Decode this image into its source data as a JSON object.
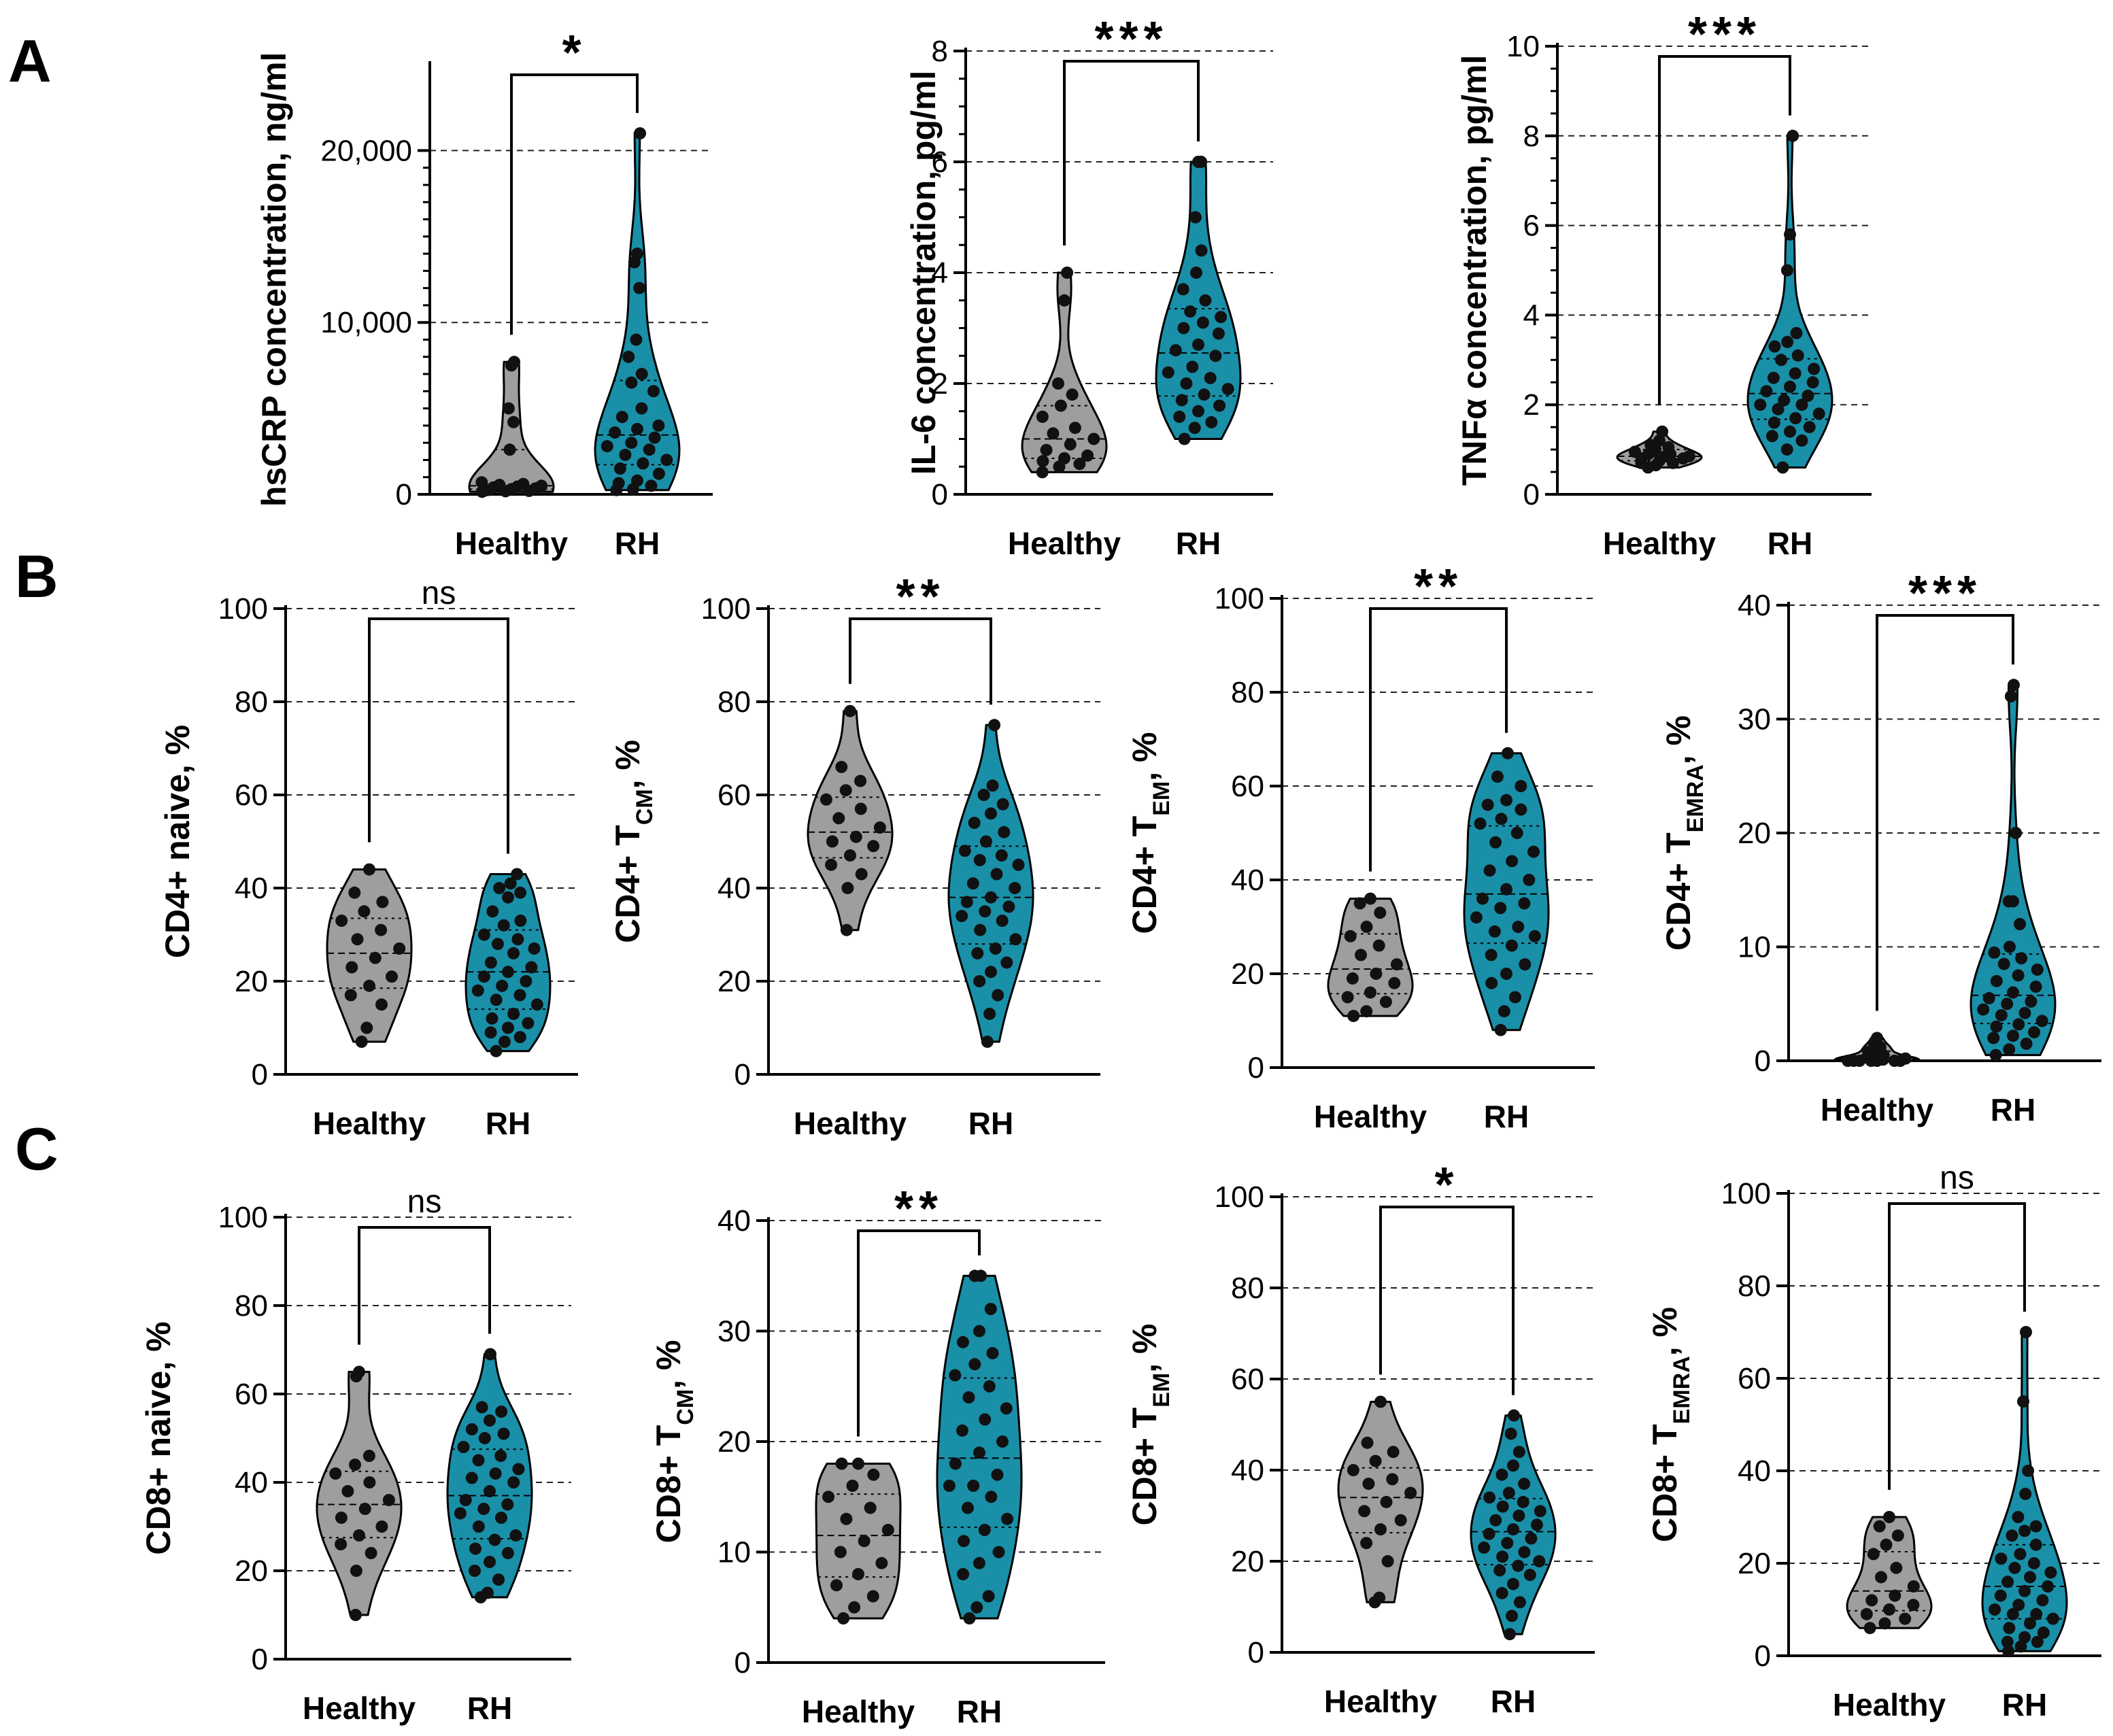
{
  "panel_labels": [
    "A",
    "B",
    "C"
  ],
  "colors": {
    "healthy": "#9e9e9e",
    "rh": "#1a8fa8",
    "dot": "#111111"
  },
  "chart_data": [
    {
      "id": "hscrp",
      "type": "violin",
      "ylabel": "hsCRP concentration, ng/ml",
      "ylim": [
        0,
        25000
      ],
      "yticks": [
        0,
        10000,
        20000
      ],
      "ytick_labels": [
        "0",
        "10,000",
        "20,000"
      ],
      "grid": "dashed",
      "categories": [
        "Healthy",
        "RH"
      ],
      "significance": "*",
      "series": [
        {
          "values": [
            300,
            150,
            450,
            700,
            250,
            500,
            180,
            350,
            4200,
            5000,
            7700,
            7500,
            2600,
            600,
            400,
            200,
            550
          ]
        },
        {
          "values": [
            300,
            500,
            800,
            1200,
            1800,
            2300,
            2600,
            3000,
            3300,
            3600,
            4000,
            4500,
            5000,
            6000,
            7000,
            8000,
            9000,
            12000,
            13500,
            14000,
            21000,
            250,
            650,
            1500,
            2000,
            2800,
            3800,
            6500
          ]
        }
      ]
    },
    {
      "id": "il6",
      "type": "violin",
      "ylabel": "IL-6 concentration, pg/ml",
      "ylim": [
        0,
        8
      ],
      "yticks": [
        0,
        2,
        4,
        6,
        8
      ],
      "ytick_labels": [
        "0",
        "2",
        "4",
        "6",
        "8"
      ],
      "grid": "dashed",
      "categories": [
        "Healthy",
        "RH"
      ],
      "significance": "***",
      "series": [
        {
          "values": [
            0.4,
            0.5,
            0.6,
            0.7,
            0.8,
            0.9,
            1.0,
            1.2,
            1.4,
            1.6,
            1.8,
            2.0,
            3.5,
            4.0,
            0.55,
            0.65,
            1.1
          ]
        },
        {
          "values": [
            1.0,
            1.2,
            1.4,
            1.5,
            1.6,
            1.8,
            2.0,
            2.1,
            2.3,
            2.5,
            2.7,
            3.0,
            3.1,
            3.3,
            3.5,
            3.7,
            4.0,
            4.4,
            5.0,
            6.0,
            6.0,
            1.3,
            1.7,
            2.2,
            2.9,
            3.2,
            1.9,
            2.6
          ]
        }
      ]
    },
    {
      "id": "tnfa",
      "type": "violin",
      "ylabel": "TNFα concentration, pg/ml",
      "ylim": [
        0,
        10
      ],
      "yticks": [
        0,
        2,
        4,
        6,
        8,
        10
      ],
      "ytick_labels": [
        "0",
        "2",
        "4",
        "6",
        "8",
        "10"
      ],
      "grid": "dashed",
      "categories": [
        "Healthy",
        "RH"
      ],
      "significance": "***",
      "series": [
        {
          "values": [
            0.6,
            0.7,
            0.75,
            0.8,
            0.85,
            0.9,
            0.95,
            1.0,
            1.1,
            1.2,
            1.4,
            0.65,
            0.8,
            0.9,
            1.05,
            0.7,
            0.85
          ]
        },
        {
          "values": [
            0.6,
            1.0,
            1.3,
            1.5,
            1.6,
            1.7,
            1.8,
            2.0,
            2.1,
            2.2,
            2.3,
            2.4,
            2.6,
            2.8,
            3.0,
            3.1,
            3.4,
            3.6,
            5.0,
            5.8,
            8.0,
            1.4,
            1.9,
            2.5,
            2.7,
            1.2,
            3.3,
            2.0
          ]
        }
      ]
    },
    {
      "id": "cd4-naive",
      "type": "violin",
      "ylabel": "CD4+ naive, %",
      "ylim": [
        0,
        100
      ],
      "yticks": [
        0,
        20,
        40,
        60,
        80,
        100
      ],
      "ytick_labels": [
        "0",
        "20",
        "40",
        "60",
        "80",
        "100"
      ],
      "grid": "dashed",
      "categories": [
        "Healthy",
        "RH"
      ],
      "significance": "ns",
      "series": [
        {
          "values": [
            7,
            10,
            15,
            17,
            19,
            21,
            23,
            25,
            27,
            29,
            31,
            33,
            35,
            37,
            39,
            44
          ]
        },
        {
          "values": [
            5,
            7,
            8,
            9,
            10,
            11,
            12,
            13,
            15,
            16,
            17,
            18,
            19,
            20,
            21,
            22,
            23,
            24,
            26,
            27,
            28,
            29,
            30,
            32,
            33,
            35,
            38,
            39,
            40,
            41,
            43
          ]
        }
      ]
    },
    {
      "id": "cd4-tcm",
      "type": "violin",
      "ylabel": "CD4+ T",
      "ylabel_sub": "CM",
      "ylabel_suffix": ", %",
      "ylim": [
        0,
        100
      ],
      "yticks": [
        0,
        20,
        40,
        60,
        80,
        100
      ],
      "ytick_labels": [
        "0",
        "20",
        "40",
        "60",
        "80",
        "100"
      ],
      "grid": "dashed",
      "categories": [
        "Healthy",
        "RH"
      ],
      "significance": "**",
      "series": [
        {
          "values": [
            31,
            40,
            43,
            45,
            47,
            49,
            50,
            51,
            53,
            55,
            57,
            59,
            61,
            63,
            66,
            78
          ]
        },
        {
          "values": [
            7,
            13,
            17,
            20,
            22,
            24,
            26,
            27,
            29,
            31,
            33,
            34,
            35,
            36,
            37,
            38,
            40,
            41,
            43,
            45,
            46,
            47,
            48,
            50,
            52,
            54,
            56,
            58,
            60,
            62,
            75
          ]
        }
      ]
    },
    {
      "id": "cd4-tem",
      "type": "violin",
      "ylabel": "CD4+ T",
      "ylabel_sub": "EM",
      "ylabel_suffix": ", %",
      "ylim": [
        0,
        100
      ],
      "yticks": [
        0,
        20,
        40,
        60,
        80,
        100
      ],
      "ytick_labels": [
        "0",
        "20",
        "40",
        "60",
        "80",
        "100"
      ],
      "grid": "dashed",
      "categories": [
        "Healthy",
        "RH"
      ],
      "significance": "**",
      "series": [
        {
          "values": [
            11,
            12,
            14,
            15,
            16,
            18,
            19,
            20,
            22,
            24,
            26,
            28,
            30,
            33,
            35,
            36
          ]
        },
        {
          "values": [
            8,
            12,
            15,
            18,
            20,
            22,
            24,
            26,
            28,
            29,
            30,
            32,
            34,
            35,
            36,
            38,
            40,
            42,
            44,
            46,
            48,
            50,
            52,
            53,
            55,
            56,
            57,
            60,
            62,
            67
          ]
        }
      ]
    },
    {
      "id": "cd4-temra",
      "type": "violin",
      "ylabel": "CD4+ T",
      "ylabel_sub": "EMRA",
      "ylabel_suffix": ", %",
      "ylim": [
        0,
        40
      ],
      "yticks": [
        0,
        10,
        20,
        30,
        40
      ],
      "ytick_labels": [
        "0",
        "10",
        "20",
        "30",
        "40"
      ],
      "grid": "dashed",
      "categories": [
        "Healthy",
        "RH"
      ],
      "significance": "***",
      "series": [
        {
          "values": [
            0,
            0,
            0,
            0,
            0,
            0,
            0,
            0.2,
            0.3,
            0.5,
            0.8,
            1.0,
            1.2,
            1.5,
            2.0,
            0.1
          ]
        },
        {
          "values": [
            0.5,
            1,
            1.5,
            2,
            2.5,
            3,
            3.5,
            4,
            4.5,
            5,
            5.5,
            6,
            6.5,
            7,
            7.5,
            8,
            8.5,
            9,
            9.5,
            10,
            12,
            14,
            14,
            20,
            32,
            33,
            2.2,
            3.2,
            4.2,
            5.2
          ]
        }
      ]
    },
    {
      "id": "cd8-naive",
      "type": "violin",
      "ylabel": "CD8+ naive, %",
      "ylim": [
        0,
        100
      ],
      "yticks": [
        0,
        20,
        40,
        60,
        80,
        100
      ],
      "ytick_labels": [
        "0",
        "20",
        "40",
        "60",
        "80",
        "100"
      ],
      "grid": "dashed",
      "categories": [
        "Healthy",
        "RH"
      ],
      "significance": "ns",
      "series": [
        {
          "values": [
            10,
            20,
            24,
            26,
            28,
            30,
            32,
            34,
            36,
            38,
            40,
            42,
            44,
            46,
            64,
            65
          ]
        },
        {
          "values": [
            14,
            15,
            18,
            20,
            22,
            24,
            25,
            27,
            28,
            30,
            32,
            33,
            35,
            36,
            38,
            40,
            42,
            43,
            45,
            46,
            48,
            50,
            51,
            52,
            54,
            56,
            57,
            69,
            34,
            41
          ]
        }
      ]
    },
    {
      "id": "cd8-tcm",
      "type": "violin",
      "ylabel": "CD8+ T",
      "ylabel_sub": "CM",
      "ylabel_suffix": ", %",
      "ylim": [
        0,
        40
      ],
      "yticks": [
        0,
        10,
        20,
        30,
        40
      ],
      "ytick_labels": [
        "0",
        "10",
        "20",
        "30",
        "40"
      ],
      "grid": "dashed",
      "categories": [
        "Healthy",
        "RH"
      ],
      "significance": "**",
      "series": [
        {
          "values": [
            4,
            5,
            6,
            7,
            8,
            9,
            10,
            11,
            12,
            13,
            14,
            15,
            16,
            17,
            18,
            18
          ]
        },
        {
          "values": [
            4,
            5,
            6,
            8,
            9,
            10,
            11,
            12,
            13,
            14,
            15,
            16,
            17,
            18,
            19,
            20,
            21,
            22,
            23,
            24,
            25,
            26,
            27,
            28,
            29,
            30,
            32,
            35,
            35,
            16
          ]
        }
      ]
    },
    {
      "id": "cd8-tem",
      "type": "violin",
      "ylabel": "CD8+ T",
      "ylabel_sub": "EM",
      "ylabel_suffix": ", %",
      "ylim": [
        0,
        100
      ],
      "yticks": [
        0,
        20,
        40,
        60,
        80,
        100
      ],
      "ytick_labels": [
        "0",
        "20",
        "40",
        "60",
        "80",
        "100"
      ],
      "grid": "dashed",
      "categories": [
        "Healthy",
        "RH"
      ],
      "significance": "*",
      "series": [
        {
          "values": [
            11,
            12,
            20,
            24,
            27,
            29,
            31,
            33,
            35,
            37,
            38,
            40,
            42,
            44,
            46,
            55
          ]
        },
        {
          "values": [
            4,
            8,
            11,
            13,
            15,
            17,
            18,
            19,
            20,
            21,
            22,
            23,
            24,
            25,
            26,
            27,
            28,
            29,
            30,
            31,
            32,
            33,
            34,
            35,
            37,
            39,
            41,
            44,
            48,
            52
          ]
        }
      ]
    },
    {
      "id": "cd8-temra",
      "type": "violin",
      "ylabel": "CD8+ T",
      "ylabel_sub": "EMRA",
      "ylabel_suffix": ", %",
      "ylim": [
        0,
        100
      ],
      "yticks": [
        0,
        20,
        40,
        60,
        80,
        100
      ],
      "ytick_labels": [
        "0",
        "20",
        "40",
        "60",
        "80",
        "100"
      ],
      "grid": "dashed",
      "categories": [
        "Healthy",
        "RH"
      ],
      "significance": "ns",
      "series": [
        {
          "values": [
            6,
            7,
            8,
            9,
            10,
            11,
            12,
            13,
            15,
            17,
            19,
            22,
            24,
            26,
            28,
            30
          ]
        },
        {
          "values": [
            1,
            2,
            3,
            4,
            5,
            6,
            7,
            8,
            9,
            10,
            11,
            12,
            13,
            14,
            15,
            16,
            17,
            18,
            19,
            20,
            21,
            22,
            24,
            26,
            27,
            28,
            30,
            35,
            40,
            55,
            70,
            3,
            9
          ]
        }
      ]
    }
  ]
}
